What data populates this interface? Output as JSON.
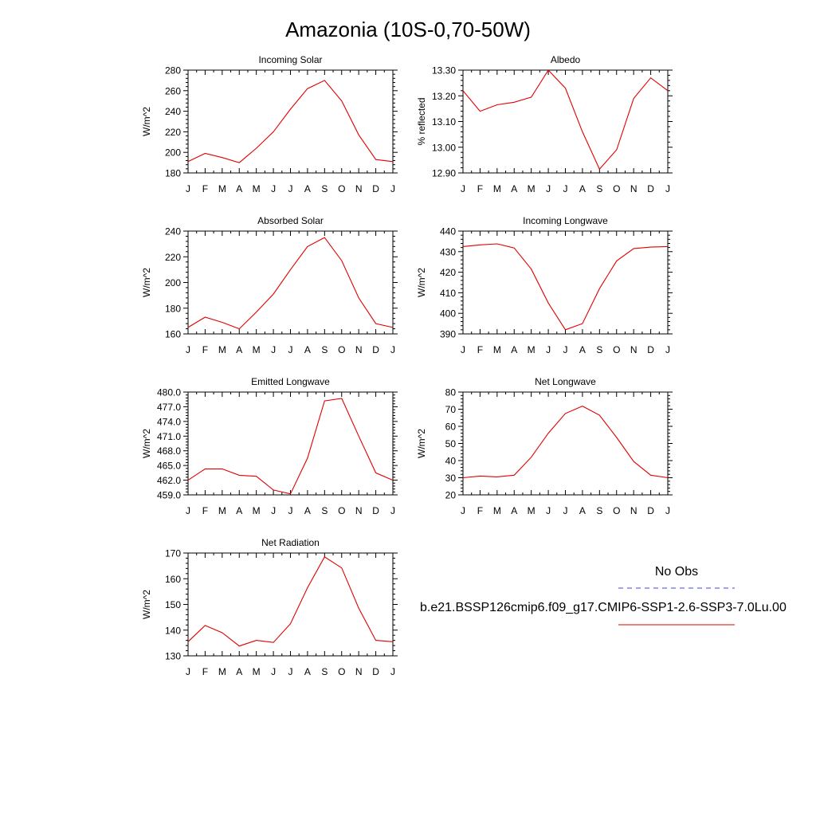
{
  "page": {
    "title": "Amazonia (10S-0,70-50W)"
  },
  "months": [
    "J",
    "F",
    "M",
    "A",
    "M",
    "J",
    "J",
    "A",
    "S",
    "O",
    "N",
    "D",
    "J"
  ],
  "legend": {
    "obs_label": "No Obs",
    "obs_color": "#4444dd",
    "model_label": "b.e21.BSSP126cmip6.f09_g17.CMIP6-SSP1-2.6-SSP3-7.0Lu.00",
    "model_color": "#e00000"
  },
  "chart_data": [
    {
      "type": "line",
      "title": "Incoming Solar",
      "ylabel": "W/m^2",
      "ylim": [
        180,
        280
      ],
      "yticks": [
        180,
        200,
        220,
        240,
        260,
        280
      ],
      "ytick_labels": [
        "180",
        "200",
        "220",
        "240",
        "260",
        "280"
      ],
      "series": [
        {
          "values": [
            191,
            199,
            195,
            190,
            204,
            220,
            242,
            262,
            270,
            250,
            217,
            193,
            191
          ]
        }
      ]
    },
    {
      "type": "line",
      "title": "Albedo",
      "ylabel": "% reflected",
      "ylim": [
        12.9,
        13.3
      ],
      "yticks": [
        12.9,
        13.0,
        13.1,
        13.2,
        13.3
      ],
      "ytick_labels": [
        "12.90",
        "13.00",
        "13.10",
        "13.20",
        "13.30"
      ],
      "series": [
        {
          "values": [
            13.22,
            13.14,
            13.165,
            13.175,
            13.195,
            13.3,
            13.23,
            13.06,
            12.915,
            12.99,
            13.19,
            13.27,
            13.22
          ]
        }
      ]
    },
    {
      "type": "line",
      "title": "Absorbed Solar",
      "ylabel": "W/m^2",
      "ylim": [
        160,
        240
      ],
      "yticks": [
        160,
        180,
        200,
        220,
        240
      ],
      "ytick_labels": [
        "160",
        "180",
        "200",
        "220",
        "240"
      ],
      "series": [
        {
          "values": [
            165,
            173,
            169,
            164,
            177,
            191,
            210,
            228,
            235,
            217,
            188,
            168,
            165
          ]
        }
      ]
    },
    {
      "type": "line",
      "title": "Incoming Longwave",
      "ylabel": "W/m^2",
      "ylim": [
        390,
        440
      ],
      "yticks": [
        390,
        400,
        410,
        420,
        430,
        440
      ],
      "ytick_labels": [
        "390",
        "400",
        "410",
        "420",
        "430",
        "440"
      ],
      "series": [
        {
          "values": [
            432.5,
            433.3,
            433.8,
            431.8,
            421.5,
            405,
            392,
            395,
            412,
            425.5,
            431.5,
            432.2,
            432.5
          ]
        }
      ]
    },
    {
      "type": "line",
      "title": "Emitted Longwave",
      "ylabel": "W/m^2",
      "ylim": [
        459,
        480
      ],
      "yticks": [
        459,
        462,
        465,
        468,
        471,
        474,
        477,
        480
      ],
      "ytick_labels": [
        "459.0",
        "462.0",
        "465.0",
        "468.0",
        "471.0",
        "474.0",
        "477.0",
        "480.0"
      ],
      "series": [
        {
          "values": [
            462,
            464.3,
            464.3,
            463,
            462.8,
            460,
            459.2,
            466.5,
            478.2,
            478.7,
            471,
            463.5,
            462
          ]
        }
      ]
    },
    {
      "type": "line",
      "title": "Net Longwave",
      "ylabel": "W/m^2",
      "ylim": [
        20,
        80
      ],
      "yticks": [
        20,
        30,
        40,
        50,
        60,
        70,
        80
      ],
      "ytick_labels": [
        "20",
        "30",
        "40",
        "50",
        "60",
        "70",
        "80"
      ],
      "series": [
        {
          "values": [
            30,
            31,
            30.5,
            31.5,
            42,
            56,
            67.5,
            71.8,
            66.5,
            53.5,
            39.5,
            31.5,
            30
          ]
        }
      ]
    },
    {
      "type": "line",
      "title": "Net Radiation",
      "ylabel": "W/m^2",
      "ylim": [
        130,
        170
      ],
      "yticks": [
        130,
        140,
        150,
        160,
        170
      ],
      "ytick_labels": [
        "130",
        "140",
        "150",
        "160",
        "170"
      ],
      "series": [
        {
          "values": [
            135.5,
            141.8,
            139,
            133.8,
            136,
            135.2,
            142.5,
            156.5,
            168.5,
            164.2,
            148.5,
            136,
            135.5
          ]
        }
      ]
    }
  ]
}
